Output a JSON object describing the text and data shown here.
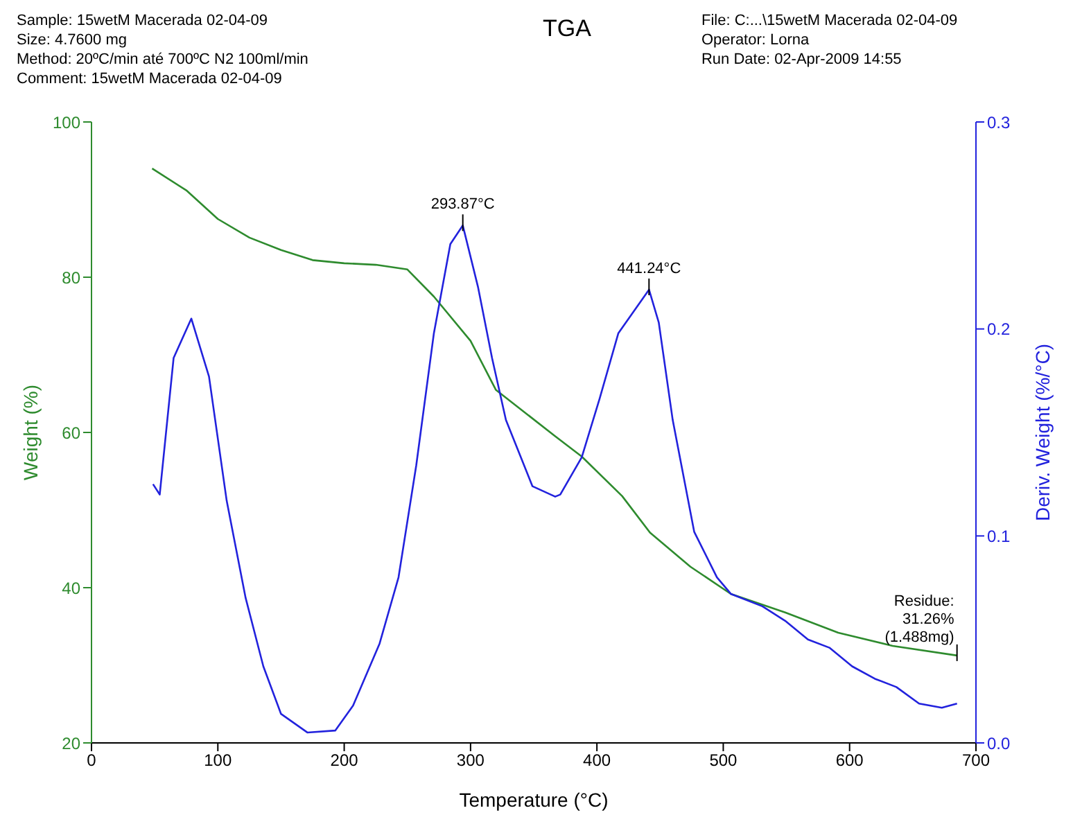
{
  "chart_data": {
    "type": "line",
    "title": "TGA",
    "xlabel": "Temperature (°C)",
    "ylabel": "Weight (%)",
    "y2label": "Deriv. Weight (%/°C)",
    "xlim": [
      0,
      700
    ],
    "xticks": [
      0,
      100,
      200,
      300,
      400,
      500,
      600,
      700
    ],
    "ylim": [
      20,
      100
    ],
    "yticks": [
      20,
      40,
      60,
      80,
      100
    ],
    "y2lim": [
      0,
      0.3
    ],
    "y2ticks": [
      {
        "value": 0,
        "label": "0.0"
      },
      0.1,
      0.2,
      0.3
    ],
    "grid": false,
    "legend": false,
    "marker": "none",
    "line_style": "solid",
    "series": [
      {
        "color": "#2e8b2e",
        "x": [
          48,
          75,
          100,
          125,
          150,
          175,
          200,
          225,
          250,
          271,
          300,
          320,
          367,
          388,
          420,
          442,
          474,
          506,
          549,
          591,
          634,
          685
        ],
        "values": [
          94.0,
          91.2,
          87.5,
          85.1,
          83.5,
          82.2,
          81.8,
          81.6,
          81.0,
          77.5,
          71.8,
          65.5,
          59.5,
          56.9,
          51.8,
          47.1,
          42.7,
          39.2,
          36.8,
          34.2,
          32.5,
          31.26
        ]
      },
      {
        "color": "#2222dd",
        "axis": "y2",
        "x": [
          48.7,
          54,
          65,
          79,
          93,
          107,
          122,
          136,
          150,
          171,
          193,
          207,
          228,
          243,
          257,
          271,
          284,
          293.87,
          306,
          317,
          328,
          349,
          367,
          371,
          388,
          402,
          417,
          441.24,
          449,
          460,
          477,
          495,
          506,
          531,
          549,
          567,
          584,
          602,
          620,
          637,
          655,
          673,
          685
        ],
        "values": [
          0.125,
          0.12,
          0.186,
          0.205,
          0.177,
          0.117,
          0.07,
          0.037,
          0.014,
          0.005,
          0.006,
          0.018,
          0.048,
          0.08,
          0.134,
          0.198,
          0.241,
          0.25,
          0.22,
          0.186,
          0.156,
          0.124,
          0.119,
          0.12,
          0.138,
          0.166,
          0.198,
          0.219,
          0.203,
          0.156,
          0.102,
          0.08,
          0.072,
          0.066,
          0.059,
          0.05,
          0.046,
          0.037,
          0.031,
          0.027,
          0.019,
          0.017,
          0.019
        ]
      }
    ],
    "annotations": [
      "Sample: 15wetM  Macerada 02-04-09",
      "Size:  4.7600 mg",
      "Method: 20ºC/min até 700ºC N2 100ml/min",
      "Comment: 15wetM  Macerada 02-04-09",
      "File: C:...\\15wetM  Macerada 02-04-09",
      "Operator: Lorna",
      "Run Date: 02-Apr-2009 14:55",
      "293.87°C",
      "441.24°C",
      {
        "text": "Residue:\n31.26%\n(1.488mg)",
        "x": 685,
        "y": 31.26
      }
    ]
  }
}
